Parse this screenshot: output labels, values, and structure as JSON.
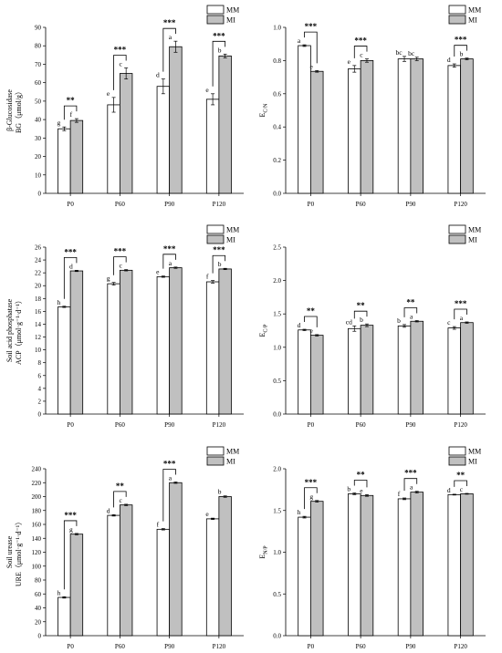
{
  "legend": {
    "series": [
      {
        "name": "MM",
        "color": "#ffffff"
      },
      {
        "name": "MI",
        "color": "#c0c0c0"
      }
    ]
  },
  "chart_data": [
    {
      "type": "bar",
      "ylabel_lines": [
        "β-Glucosidase",
        "BG（μmol/g）"
      ],
      "ylim": [
        0,
        90
      ],
      "yticks": [
        0,
        10,
        20,
        30,
        40,
        50,
        60,
        70,
        80,
        90
      ],
      "ytick_labels": [
        "0",
        "10",
        "20",
        "30",
        "40",
        "50",
        "60",
        "70",
        "80",
        "90"
      ],
      "categories": [
        "P0",
        "P60",
        "P90",
        "P120"
      ],
      "series": [
        {
          "name": "MM",
          "values": [
            35,
            48,
            58,
            51
          ],
          "errors": [
            1,
            4,
            4,
            3
          ],
          "letters": [
            "g",
            "e",
            "d",
            "e"
          ]
        },
        {
          "name": "MI",
          "values": [
            39.5,
            65,
            79.5,
            74.5
          ],
          "errors": [
            1,
            3,
            3,
            1
          ],
          "letters": [
            "f",
            "c",
            "a",
            "b"
          ]
        }
      ],
      "significance": [
        "**",
        "***",
        "***",
        "***"
      ],
      "show_legend": true
    },
    {
      "type": "bar",
      "ylabel_lines": [
        "E_C/N"
      ],
      "ylim": [
        0.0,
        1.0
      ],
      "yticks": [
        0.0,
        0.2,
        0.4,
        0.6,
        0.8,
        1.0
      ],
      "ytick_labels": [
        "0.0",
        "0.2",
        "0.4",
        "0.6",
        "0.8",
        "1.0"
      ],
      "categories": [
        "P0",
        "P60",
        "P90",
        "P120"
      ],
      "series": [
        {
          "name": "MM",
          "values": [
            0.89,
            0.75,
            0.81,
            0.77
          ],
          "errors": [
            0.005,
            0.02,
            0.015,
            0.01
          ],
          "letters": [
            "a",
            "e",
            "bc",
            "d"
          ]
        },
        {
          "name": "MI",
          "values": [
            0.735,
            0.8,
            0.81,
            0.81
          ],
          "errors": [
            0.005,
            0.01,
            0.01,
            0.005
          ],
          "letters": [
            "e",
            "c",
            "bc",
            "b"
          ]
        }
      ],
      "significance": [
        "***",
        "***",
        "",
        "***"
      ],
      "show_legend": true
    },
    {
      "type": "bar",
      "ylabel_lines": [
        "Soil acid phosphatase",
        "ACP（μmol·g⁻¹·d⁻¹）"
      ],
      "ylim": [
        0,
        26
      ],
      "yticks": [
        0,
        2,
        4,
        6,
        8,
        10,
        12,
        14,
        16,
        18,
        20,
        22,
        24,
        26
      ],
      "ytick_labels": [
        "0",
        "2",
        "4",
        "6",
        "8",
        "10",
        "12",
        "14",
        "16",
        "18",
        "20",
        "22",
        "24",
        "26"
      ],
      "categories": [
        "P0",
        "P60",
        "P90",
        "P120"
      ],
      "series": [
        {
          "name": "MM",
          "values": [
            16.7,
            20.3,
            21.4,
            20.6
          ],
          "errors": [
            0.1,
            0.2,
            0.1,
            0.2
          ],
          "letters": [
            "h",
            "g",
            "e",
            "f"
          ]
        },
        {
          "name": "MI",
          "values": [
            22.3,
            22.4,
            22.8,
            22.6
          ],
          "errors": [
            0.1,
            0.1,
            0.1,
            0.1
          ],
          "letters": [
            "d",
            "c",
            "a",
            "b"
          ]
        }
      ],
      "significance": [
        "***",
        "***",
        "***",
        "***"
      ],
      "show_legend": true
    },
    {
      "type": "bar",
      "ylabel_lines": [
        "E_C/P"
      ],
      "ylim": [
        0.0,
        2.5
      ],
      "yticks": [
        0.0,
        0.5,
        1.0,
        1.5,
        2.0,
        2.5
      ],
      "ytick_labels": [
        "0.0",
        "0.5",
        "1.0",
        "1.5",
        "2.0",
        "2.5"
      ],
      "categories": [
        "P0",
        "P60",
        "P90",
        "P120"
      ],
      "series": [
        {
          "name": "MM",
          "values": [
            1.26,
            1.28,
            1.32,
            1.29
          ],
          "errors": [
            0.01,
            0.04,
            0.02,
            0.02
          ],
          "letters": [
            "d",
            "cd",
            "b",
            "c"
          ]
        },
        {
          "name": "MI",
          "values": [
            1.18,
            1.33,
            1.39,
            1.37
          ],
          "errors": [
            0.01,
            0.02,
            0.01,
            0.01
          ],
          "letters": [
            "e",
            "b",
            "a",
            "a"
          ]
        }
      ],
      "significance": [
        "**",
        "**",
        "**",
        "***"
      ],
      "show_legend": true
    },
    {
      "type": "bar",
      "ylabel_lines": [
        "Soil urease",
        "URE（μmol·g⁻¹·d⁻¹）"
      ],
      "ylim": [
        0,
        240
      ],
      "yticks": [
        0,
        20,
        40,
        60,
        80,
        100,
        120,
        140,
        160,
        180,
        200,
        220,
        240
      ],
      "ytick_labels": [
        "0",
        "20",
        "40",
        "60",
        "80",
        "100",
        "120",
        "140",
        "160",
        "180",
        "200",
        "220",
        "240"
      ],
      "categories": [
        "P0",
        "P60",
        "P90",
        "P120"
      ],
      "series": [
        {
          "name": "MM",
          "values": [
            55,
            173,
            153,
            168
          ],
          "errors": [
            1,
            1,
            1,
            1
          ],
          "letters": [
            "h",
            "d",
            "f",
            "e"
          ]
        },
        {
          "name": "MI",
          "values": [
            146,
            188,
            220,
            200
          ],
          "errors": [
            1,
            1,
            1,
            1
          ],
          "letters": [
            "g",
            "c",
            "a",
            "b"
          ]
        }
      ],
      "significance": [
        "***",
        "**",
        "***",
        ""
      ],
      "show_legend": true
    },
    {
      "type": "bar",
      "ylabel_lines": [
        "E_N/P"
      ],
      "ylim": [
        0.0,
        2.0
      ],
      "yticks": [
        0.0,
        0.5,
        1.0,
        1.5,
        2.0
      ],
      "ytick_labels": [
        "0.0",
        "0.5",
        "1.0",
        "1.5",
        "2.0"
      ],
      "categories": [
        "P0",
        "P60",
        "P90",
        "P120"
      ],
      "series": [
        {
          "name": "MM",
          "values": [
            1.42,
            1.7,
            1.64,
            1.69
          ],
          "errors": [
            0.01,
            0.01,
            0.01,
            0.005
          ],
          "letters": [
            "h",
            "b",
            "f",
            "d"
          ]
        },
        {
          "name": "MI",
          "values": [
            1.61,
            1.68,
            1.72,
            1.7
          ],
          "errors": [
            0.01,
            0.01,
            0.01,
            0.005
          ],
          "letters": [
            "g",
            "e",
            "a",
            "c"
          ]
        }
      ],
      "significance": [
        "***",
        "**",
        "***",
        "**"
      ],
      "show_legend": true
    }
  ]
}
